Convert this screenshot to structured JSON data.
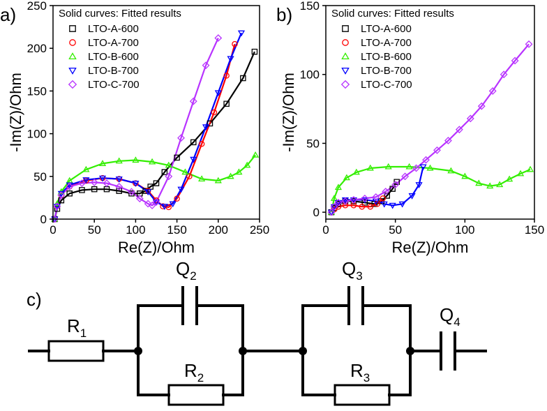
{
  "panels": {
    "a": {
      "label": "a)"
    },
    "b": {
      "label": "b)"
    },
    "c": {
      "label": "c)"
    }
  },
  "chart_data": [
    {
      "type": "scatter",
      "panel": "a",
      "title": "",
      "xlabel": "Re(Z)/Ohm",
      "ylabel": "-Im(Z)/Ohm",
      "xlim": [
        0,
        250
      ],
      "ylim": [
        0,
        250
      ],
      "x_ticks": [
        0,
        50,
        100,
        150,
        200,
        250
      ],
      "y_ticks": [
        0,
        50,
        100,
        150,
        200,
        250
      ],
      "legend_title": "Solid curves: Fitted results",
      "legend_position": "top-left",
      "series": [
        {
          "name": "LTO-A-600",
          "color": "#000000",
          "marker": "square",
          "x": [
            2,
            5,
            10,
            20,
            35,
            50,
            65,
            80,
            95,
            105,
            112,
            118,
            125,
            135,
            150,
            170,
            190,
            210,
            230,
            244
          ],
          "y": [
            0,
            12,
            22,
            30,
            34,
            35,
            35,
            33,
            30,
            30,
            33,
            38,
            42,
            55,
            72,
            90,
            112,
            135,
            165,
            196
          ]
        },
        {
          "name": "LTO-A-700",
          "color": "#ff0000",
          "marker": "circle",
          "x": [
            2,
            5,
            10,
            20,
            40,
            60,
            80,
            100,
            115,
            125,
            133,
            140,
            150,
            165,
            180,
            195,
            210,
            220
          ],
          "y": [
            0,
            15,
            28,
            38,
            45,
            48,
            47,
            42,
            33,
            22,
            15,
            14,
            24,
            50,
            88,
            125,
            168,
            205
          ]
        },
        {
          "name": "LTO-B-600",
          "color": "#33ee00",
          "marker": "triangle-up",
          "x": [
            2,
            5,
            10,
            20,
            40,
            60,
            80,
            100,
            120,
            140,
            160,
            180,
            200,
            215,
            225,
            235,
            245
          ],
          "y": [
            0,
            18,
            32,
            45,
            58,
            65,
            68,
            69,
            67,
            63,
            55,
            47,
            45,
            50,
            55,
            63,
            75
          ]
        },
        {
          "name": "LTO-B-700",
          "color": "#0000ff",
          "marker": "triangle-down",
          "x": [
            2,
            5,
            10,
            20,
            40,
            60,
            80,
            100,
            115,
            125,
            135,
            145,
            155,
            170,
            185,
            200,
            215,
            228
          ],
          "y": [
            0,
            15,
            30,
            40,
            46,
            48,
            47,
            42,
            32,
            20,
            15,
            18,
            35,
            70,
            108,
            148,
            188,
            218
          ]
        },
        {
          "name": "LTO-C-700",
          "color": "#b833ff",
          "marker": "diamond",
          "x": [
            2,
            5,
            10,
            20,
            35,
            50,
            65,
            80,
            95,
            105,
            115,
            120,
            125,
            140,
            155,
            170,
            185,
            200
          ],
          "y": [
            0,
            15,
            28,
            38,
            42,
            43,
            42,
            38,
            32,
            24,
            18,
            16,
            20,
            50,
            95,
            138,
            180,
            212
          ]
        }
      ]
    },
    {
      "type": "scatter",
      "panel": "b",
      "title": "",
      "xlabel": "Re(Z)/Ohm",
      "ylabel": "-Im(Z)/Ohm",
      "xlim": [
        0,
        150
      ],
      "ylim": [
        -5,
        150
      ],
      "x_ticks": [
        0,
        50,
        100,
        150
      ],
      "y_ticks": [
        0,
        50,
        100,
        150
      ],
      "legend_title": "Solid curves: Fitted results",
      "legend_position": "top-left",
      "series": [
        {
          "name": "LTO-A-600",
          "color": "#000000",
          "marker": "square",
          "x": [
            4,
            6,
            9,
            14,
            20,
            28,
            35,
            40,
            44,
            48,
            51
          ],
          "y": [
            0,
            3,
            6,
            8,
            8,
            7,
            6,
            8,
            12,
            17,
            22
          ]
        },
        {
          "name": "LTO-A-700",
          "color": "#ff0000",
          "marker": "circle",
          "x": [
            4,
            6,
            9,
            14,
            20,
            26,
            32,
            37,
            41
          ],
          "y": [
            0,
            2,
            4,
            5,
            5,
            4,
            4,
            6,
            10
          ]
        },
        {
          "name": "LTO-B-600",
          "color": "#33ee00",
          "marker": "triangle-up",
          "x": [
            4,
            6,
            9,
            15,
            22,
            32,
            45,
            60,
            75,
            90,
            100,
            110,
            118,
            125,
            132,
            140,
            147
          ],
          "y": [
            0,
            10,
            18,
            25,
            29,
            32,
            33,
            33,
            32,
            30,
            26,
            21,
            19,
            20,
            24,
            28,
            31
          ]
        },
        {
          "name": "LTO-B-700",
          "color": "#0000ff",
          "marker": "triangle-down",
          "x": [
            4,
            6,
            9,
            14,
            20,
            28,
            36,
            42,
            48,
            55,
            62,
            67,
            70
          ],
          "y": [
            0,
            4,
            7,
            9,
            9,
            9,
            8,
            6,
            5,
            6,
            12,
            20,
            33
          ]
        },
        {
          "name": "LTO-C-700",
          "color": "#b833ff",
          "marker": "diamond",
          "x": [
            4,
            6,
            9,
            14,
            20,
            28,
            36,
            43,
            50,
            57,
            65,
            72,
            80,
            88,
            96,
            104,
            112,
            120,
            128,
            136,
            146
          ],
          "y": [
            0,
            4,
            7,
            8,
            9,
            10,
            11,
            15,
            20,
            26,
            32,
            38,
            45,
            52,
            60,
            68,
            77,
            88,
            100,
            110,
            122
          ]
        }
      ]
    }
  ],
  "circuit": {
    "r1": {
      "base": "R",
      "sub": "1"
    },
    "q2": {
      "base": "Q",
      "sub": "2"
    },
    "r2": {
      "base": "R",
      "sub": "2"
    },
    "q3": {
      "base": "Q",
      "sub": "3"
    },
    "r3": {
      "base": "R",
      "sub": "3"
    },
    "q4": {
      "base": "Q",
      "sub": "4"
    }
  }
}
